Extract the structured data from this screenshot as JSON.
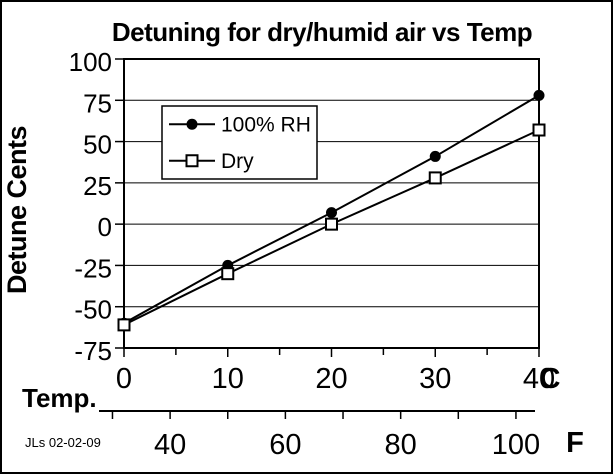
{
  "chart_data": {
    "type": "line",
    "title": "Detuning for dry/humid air vs Temp",
    "ylabel": "Detune Cents",
    "xlabel": "Temp.",
    "x_unit_primary": "C",
    "x_unit_secondary": "F",
    "x": [
      0,
      10,
      20,
      30,
      40
    ],
    "series": [
      {
        "name": "100% RH",
        "marker": "filled-circle",
        "values": [
          -60,
          -25,
          7,
          41,
          78
        ]
      },
      {
        "name": "Dry",
        "marker": "open-square",
        "values": [
          -61,
          -30,
          0,
          28,
          57
        ]
      }
    ],
    "ylim": [
      -75,
      100
    ],
    "yticks": [
      100,
      75,
      50,
      25,
      0,
      -25,
      -50,
      -75
    ],
    "xlim_c": [
      0,
      40
    ],
    "xticks_c": [
      0,
      10,
      20,
      30,
      40
    ],
    "xticks_c_minor": [
      5,
      15,
      25,
      35
    ],
    "secondary_axis": {
      "unit": "F",
      "ticks_f": [
        30,
        40,
        50,
        60,
        70,
        80,
        90,
        100
      ],
      "labeled_ticks_f": [
        40,
        60,
        80,
        100
      ],
      "c_to_f_offset": 32,
      "c_to_f_scale": 1.8
    },
    "grid": "horizontal",
    "legend_position": "upper-left-inside",
    "credit": "JLs 02-02-09",
    "colors": {
      "foreground": "#000000",
      "background": "#ffffff"
    }
  }
}
